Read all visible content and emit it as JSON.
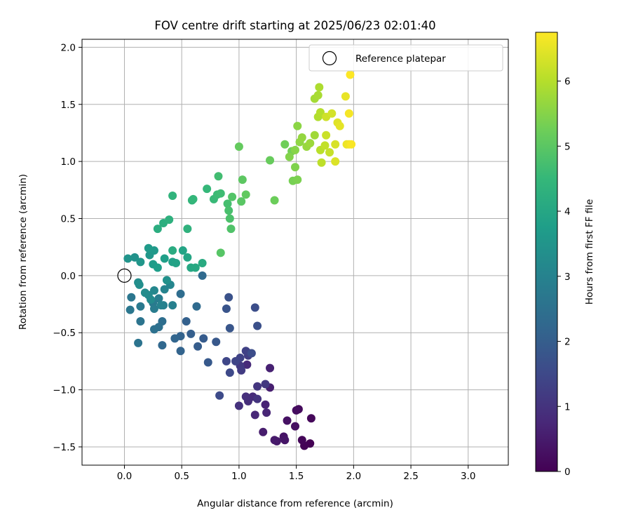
{
  "chart_data": {
    "type": "scatter",
    "title": "FOV centre drift starting at 2025/06/23 02:01:40",
    "xlabel": "Angular distance from reference (arcmin)",
    "ylabel": "Rotation from reference (arcmin)",
    "xlim": [
      -0.37,
      3.35
    ],
    "ylim": [
      -1.66,
      2.07
    ],
    "xticks": [
      "0.0",
      "0.5",
      "1.0",
      "1.5",
      "2.0",
      "2.5",
      "3.0"
    ],
    "yticks": [
      "−1.5",
      "−1.0",
      "−0.5",
      "0.0",
      "0.5",
      "1.0",
      "1.5",
      "2.0"
    ],
    "grid": true,
    "legend": {
      "position": "top-right",
      "entries": [
        "Reference platepar"
      ]
    },
    "reference_point": {
      "name": "Reference platepar",
      "x": 0.0,
      "y": 0.0
    },
    "colorbar": {
      "label": "Hours from first FF file",
      "colormap": "viridis",
      "range": [
        0,
        6.75
      ],
      "ticks": [
        "0",
        "1",
        "2",
        "3",
        "4",
        "5",
        "6"
      ]
    },
    "series": [
      {
        "points": [
          [
            1.62,
            -1.47
          ],
          [
            1.57,
            -1.49
          ],
          [
            1.55,
            -1.44
          ],
          [
            1.63,
            -1.25
          ],
          [
            1.52,
            -1.17
          ],
          [
            1.5,
            -1.18
          ],
          [
            1.49,
            -1.32
          ],
          [
            1.42,
            -1.27
          ],
          [
            1.39,
            -1.41
          ],
          [
            1.4,
            -1.44
          ],
          [
            1.33,
            -1.45
          ],
          [
            1.31,
            -1.44
          ],
          [
            1.21,
            -1.37
          ],
          [
            1.27,
            -0.98
          ],
          [
            1.27,
            -0.81
          ],
          [
            1.23,
            -1.13
          ],
          [
            1.24,
            -1.2
          ],
          [
            1.14,
            -1.22
          ],
          [
            1.07,
            -0.78
          ],
          [
            1.12,
            -1.06
          ],
          [
            1.08,
            -1.1
          ],
          [
            1.06,
            -1.06
          ],
          [
            1.0,
            -1.14
          ],
          [
            1.16,
            -1.08
          ],
          [
            1.16,
            -0.97
          ],
          [
            1.23,
            -0.95
          ],
          [
            1.01,
            -0.79
          ],
          [
            1.02,
            -0.83
          ],
          [
            1.08,
            -0.7
          ],
          [
            1.09,
            -0.68
          ],
          [
            1.06,
            -0.66
          ],
          [
            1.01,
            -0.72
          ],
          [
            0.97,
            -0.75
          ],
          [
            0.89,
            -0.75
          ],
          [
            0.92,
            -0.85
          ],
          [
            0.83,
            -1.05
          ],
          [
            1.11,
            -0.68
          ],
          [
            1.14,
            -0.28
          ],
          [
            1.16,
            -0.44
          ],
          [
            0.91,
            -0.19
          ],
          [
            0.89,
            -0.29
          ],
          [
            0.92,
            -0.46
          ],
          [
            0.8,
            -0.58
          ],
          [
            0.73,
            -0.76
          ],
          [
            0.69,
            -0.55
          ],
          [
            0.64,
            -0.62
          ],
          [
            0.58,
            -0.51
          ],
          [
            0.54,
            -0.4
          ],
          [
            0.49,
            -0.53
          ],
          [
            0.49,
            -0.66
          ],
          [
            0.44,
            -0.55
          ],
          [
            0.33,
            -0.61
          ],
          [
            0.68,
            0.0
          ],
          [
            0.63,
            -0.27
          ],
          [
            0.49,
            -0.16
          ],
          [
            0.33,
            -0.4
          ],
          [
            0.3,
            -0.45
          ],
          [
            0.26,
            -0.47
          ],
          [
            0.12,
            -0.59
          ],
          [
            0.14,
            -0.4
          ],
          [
            0.06,
            -0.19
          ],
          [
            0.05,
            -0.3
          ],
          [
            0.14,
            -0.27
          ],
          [
            0.25,
            -0.24
          ],
          [
            0.26,
            -0.29
          ],
          [
            0.3,
            -0.2
          ],
          [
            0.34,
            -0.26
          ],
          [
            0.42,
            -0.26
          ],
          [
            0.32,
            -0.26
          ],
          [
            0.35,
            -0.12
          ],
          [
            0.4,
            -0.08
          ],
          [
            0.26,
            -0.13
          ],
          [
            0.21,
            -0.17
          ],
          [
            0.23,
            -0.21
          ],
          [
            0.18,
            -0.15
          ],
          [
            0.12,
            -0.06
          ],
          [
            0.13,
            -0.08
          ],
          [
            0.37,
            -0.04
          ],
          [
            0.09,
            0.16
          ],
          [
            0.03,
            0.15
          ],
          [
            0.14,
            0.12
          ],
          [
            0.22,
            0.18
          ],
          [
            0.26,
            0.22
          ],
          [
            0.21,
            0.24
          ],
          [
            0.25,
            0.1
          ],
          [
            0.29,
            0.07
          ],
          [
            0.35,
            0.15
          ],
          [
            0.42,
            0.12
          ],
          [
            0.45,
            0.11
          ],
          [
            0.51,
            0.22
          ],
          [
            0.55,
            0.16
          ],
          [
            0.58,
            0.07
          ],
          [
            0.62,
            0.07
          ],
          [
            0.68,
            0.11
          ],
          [
            0.42,
            0.22
          ],
          [
            0.29,
            0.41
          ],
          [
            0.34,
            0.46
          ],
          [
            0.39,
            0.49
          ],
          [
            0.55,
            0.41
          ],
          [
            0.42,
            0.7
          ],
          [
            0.59,
            0.66
          ],
          [
            0.6,
            0.67
          ],
          [
            0.72,
            0.76
          ],
          [
            0.78,
            0.67
          ],
          [
            0.81,
            0.71
          ],
          [
            0.84,
            0.72
          ],
          [
            0.82,
            0.87
          ],
          [
            0.9,
            0.63
          ],
          [
            0.91,
            0.57
          ],
          [
            0.92,
            0.5
          ],
          [
            0.93,
            0.41
          ],
          [
            0.94,
            0.69
          ],
          [
            0.84,
            0.2
          ],
          [
            1.02,
            0.65
          ],
          [
            1.03,
            0.84
          ],
          [
            1.06,
            0.71
          ],
          [
            1.0,
            1.13
          ],
          [
            1.27,
            1.01
          ],
          [
            1.31,
            0.66
          ],
          [
            1.4,
            1.15
          ],
          [
            1.46,
            1.09
          ],
          [
            1.47,
            0.83
          ],
          [
            1.51,
            0.84
          ],
          [
            1.49,
            0.95
          ],
          [
            1.44,
            1.04
          ],
          [
            1.49,
            1.1
          ],
          [
            1.51,
            1.31
          ],
          [
            1.53,
            1.17
          ],
          [
            1.55,
            1.21
          ],
          [
            1.59,
            1.13
          ],
          [
            1.62,
            1.16
          ],
          [
            1.66,
            1.23
          ],
          [
            1.66,
            1.55
          ],
          [
            1.69,
            1.58
          ],
          [
            1.7,
            1.65
          ],
          [
            1.69,
            1.39
          ],
          [
            1.71,
            1.43
          ],
          [
            1.71,
            1.1
          ],
          [
            1.72,
            0.99
          ],
          [
            1.75,
            1.14
          ],
          [
            1.79,
            1.08
          ],
          [
            1.76,
            1.23
          ],
          [
            1.76,
            1.39
          ],
          [
            1.81,
            1.42
          ],
          [
            1.84,
            1.15
          ],
          [
            1.84,
            1.0
          ],
          [
            1.86,
            1.34
          ],
          [
            1.88,
            1.31
          ],
          [
            1.93,
            1.57
          ],
          [
            1.94,
            1.15
          ],
          [
            1.96,
            1.15
          ],
          [
            1.96,
            1.42
          ],
          [
            1.98,
            1.15
          ],
          [
            1.97,
            1.76
          ]
        ]
      }
    ]
  }
}
